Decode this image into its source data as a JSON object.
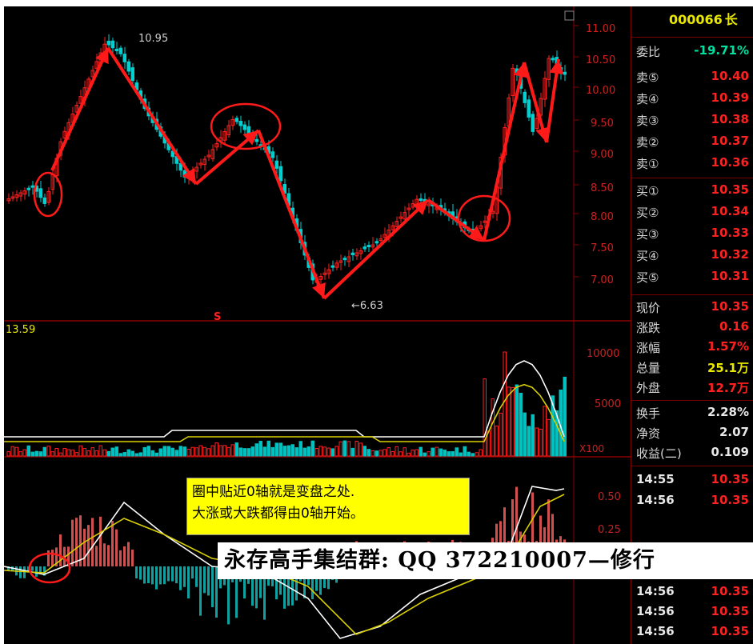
{
  "stock": {
    "code": "000066",
    "name_fragment": "长"
  },
  "price_panel": {
    "axis_labels": [
      "11.00",
      "10.50",
      "10.00",
      "9.50",
      "9.00",
      "8.50",
      "8.00",
      "7.50",
      "7.00"
    ],
    "high_label": "10.95",
    "low_label": "←6.63",
    "marker": "S"
  },
  "volume_panel": {
    "max_label": "13.59",
    "axis_labels": [
      "10000",
      "5000"
    ],
    "multiplier": "X100"
  },
  "macd_panel": {
    "axis_labels": [
      "0.50",
      "0.25"
    ]
  },
  "order_book": {
    "ratio": {
      "label": "委比",
      "value": "-19.71%"
    },
    "sells": [
      {
        "label": "卖⑤",
        "price": "10.40"
      },
      {
        "label": "卖④",
        "price": "10.39"
      },
      {
        "label": "卖③",
        "price": "10.38"
      },
      {
        "label": "卖②",
        "price": "10.37"
      },
      {
        "label": "卖①",
        "price": "10.36"
      }
    ],
    "buys": [
      {
        "label": "买①",
        "price": "10.35"
      },
      {
        "label": "买②",
        "price": "10.34"
      },
      {
        "label": "买③",
        "price": "10.33"
      },
      {
        "label": "买④",
        "price": "10.32"
      },
      {
        "label": "买⑤",
        "price": "10.31"
      }
    ]
  },
  "quote_stats": [
    {
      "label": "现价",
      "value": "10.35",
      "color": "#ff2020"
    },
    {
      "label": "涨跌",
      "value": "0.16",
      "color": "#ff2020"
    },
    {
      "label": "涨幅",
      "value": "1.57%",
      "color": "#ff2020"
    },
    {
      "label": "总量",
      "value": "25.1万",
      "color": "#e8e800"
    },
    {
      "label": "外盘",
      "value": "12.7万",
      "color": "#ff2020"
    }
  ],
  "fundamentals": [
    {
      "label": "换手",
      "value": "2.28%"
    },
    {
      "label": "净资",
      "value": "2.07"
    },
    {
      "label": "收益(二)",
      "value": "0.109"
    }
  ],
  "ticks": [
    {
      "time": "14:55",
      "price": "10.35"
    },
    {
      "time": "14:56",
      "price": "10.35"
    },
    {
      "time": "14:56",
      "price": "10.35"
    },
    {
      "time": "14:56",
      "price": "10.35"
    },
    {
      "time": "14:56",
      "price": "10.35"
    }
  ],
  "annotation": {
    "line1": "圈中贴近0轴就是变盘之处.",
    "line2": "大涨或大跌都得由0轴开始。"
  },
  "watermark": "永存高手集结群: QQ 372210007—修行",
  "colors": {
    "up": "#ff2020",
    "down": "#00d0d0",
    "axis": "#8b0000",
    "ma_yellow": "#d8d000",
    "ma_white": "#ffffff",
    "arrow": "#ff1a1a"
  }
}
